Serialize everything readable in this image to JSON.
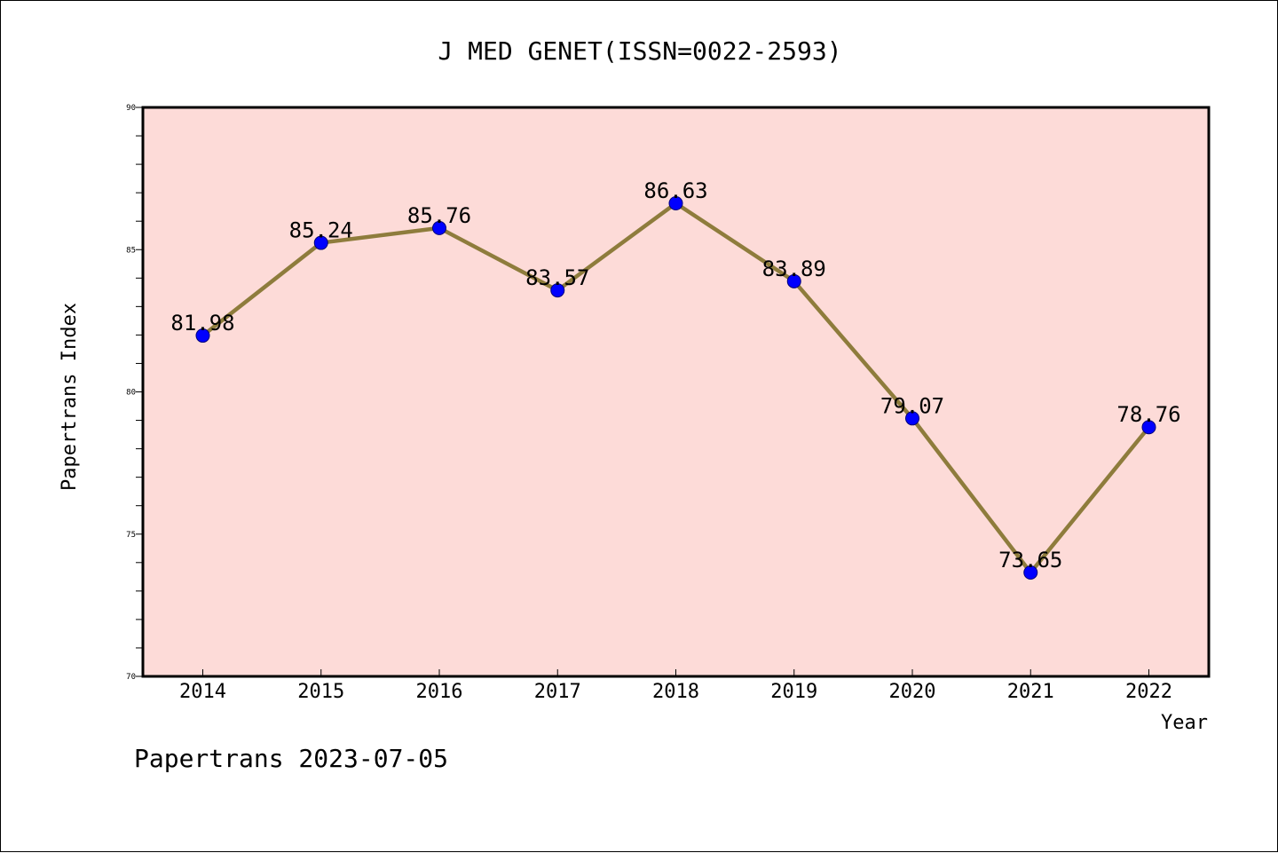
{
  "chart_data": {
    "type": "line",
    "title": "J MED GENET(ISSN=0022-2593)",
    "xlabel": "Year",
    "ylabel": "Papertrans Index",
    "ylim": [
      70,
      90
    ],
    "y_ticks": [
      "70",
      "75",
      "80",
      "85",
      "90"
    ],
    "categories": [
      "2014",
      "2015",
      "2016",
      "2017",
      "2018",
      "2019",
      "2020",
      "2021",
      "2022"
    ],
    "series": [
      {
        "values": [
          81.98,
          85.24,
          85.76,
          83.57,
          86.63,
          83.89,
          79.07,
          73.65,
          78.76
        ],
        "labels": [
          "81.98",
          "85.24",
          "85.76",
          "83.57",
          "86.63",
          "83.89",
          "79.07",
          "73.65",
          "78.76"
        ]
      }
    ],
    "grid": false,
    "colors": {
      "plot_background": "#fddbd8",
      "line": "#8e7c3c",
      "marker": "#0000ff"
    }
  },
  "footer": "Papertrans 2023-07-05"
}
